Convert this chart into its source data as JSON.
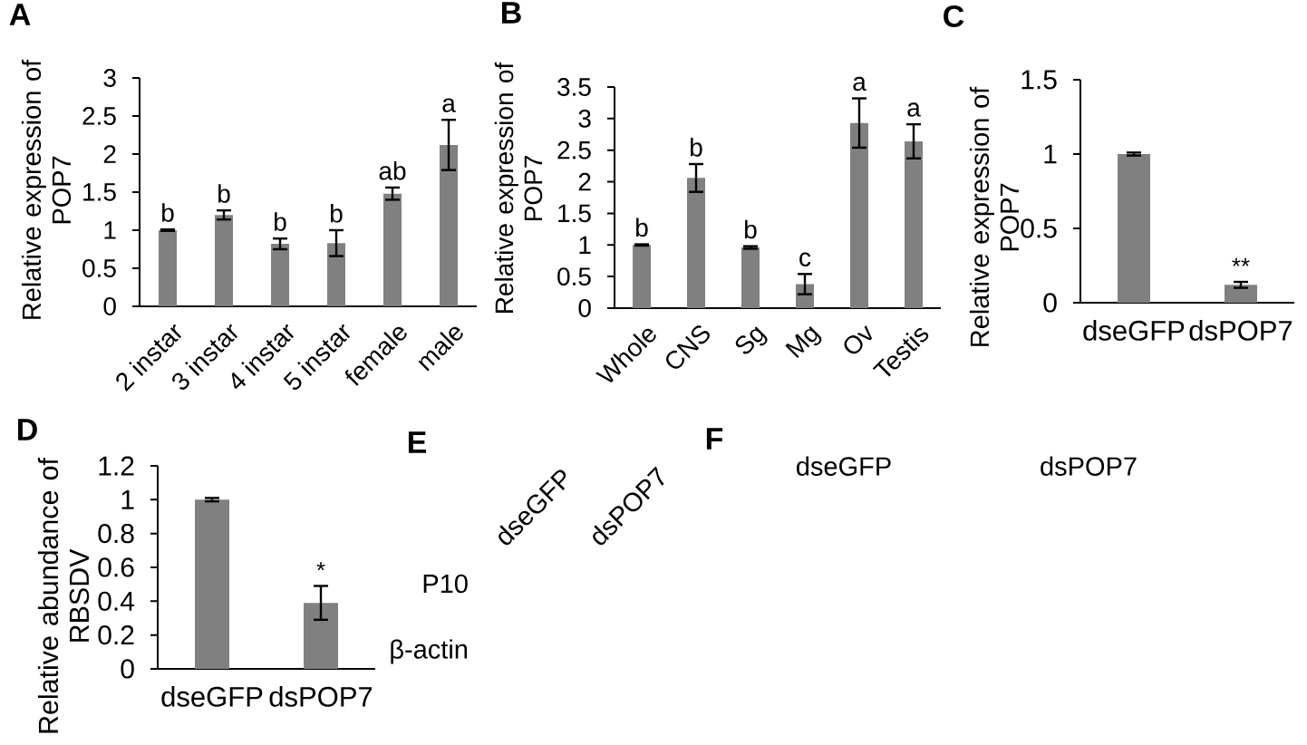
{
  "chart_data": [
    {
      "type": "bar",
      "title": "A",
      "ylabel": "Relative expression of\nPOP7",
      "categories": [
        "2 instar",
        "3 instar",
        "4 instar",
        "5 instar",
        "female",
        "male"
      ],
      "values": [
        1.0,
        1.2,
        0.82,
        0.83,
        1.48,
        2.12
      ],
      "errors": [
        0.01,
        0.06,
        0.07,
        0.17,
        0.08,
        0.33
      ],
      "color": "#808080",
      "ylim": [
        0,
        3
      ],
      "yticks": [
        0,
        0.5,
        1,
        1.5,
        2,
        2.5,
        3
      ],
      "annotations": [
        {
          "text": "b",
          "x": "2 instar",
          "y": 1.01
        },
        {
          "text": "b",
          "x": "3 instar",
          "y": 1.26
        },
        {
          "text": "b",
          "x": "4 instar",
          "y": 0.89
        },
        {
          "text": "b",
          "x": "5 instar",
          "y": 1.0
        },
        {
          "text": "ab",
          "x": "female",
          "y": 1.56
        },
        {
          "text": "a",
          "x": "male",
          "y": 2.45
        }
      ]
    },
    {
      "type": "bar",
      "title": "B",
      "ylabel": "Relative expression of\nPOP7",
      "categories": [
        "Whole",
        "CNS",
        "Sg",
        "Mg",
        "Ov",
        "Testis"
      ],
      "values": [
        1.0,
        2.06,
        0.96,
        0.38,
        2.93,
        2.64
      ],
      "errors": [
        0.01,
        0.22,
        0.02,
        0.16,
        0.39,
        0.27
      ],
      "color": "#808080",
      "ylim": [
        0,
        3.5
      ],
      "yticks": [
        0,
        0.5,
        1,
        1.5,
        2,
        2.5,
        3,
        3.5
      ],
      "annotations": [
        {
          "text": "b",
          "x": "Whole",
          "y": 1.01
        },
        {
          "text": "b",
          "x": "CNS",
          "y": 2.28
        },
        {
          "text": "b",
          "x": "Sg",
          "y": 0.98
        },
        {
          "text": "c",
          "x": "Mg",
          "y": 0.54
        },
        {
          "text": "a",
          "x": "Ov",
          "y": 3.32
        },
        {
          "text": "a",
          "x": "Testis",
          "y": 2.91
        }
      ]
    },
    {
      "type": "bar",
      "title": "C",
      "ylabel": "Relative expression of\nPOP7",
      "categories": [
        "dseGFP",
        "dsPOP7"
      ],
      "values": [
        1.0,
        0.12
      ],
      "errors": [
        0.01,
        0.02
      ],
      "color": "#808080",
      "ylim": [
        0,
        1.5
      ],
      "yticks": [
        0,
        0.5,
        1,
        1.5
      ],
      "annotations": [
        {
          "text": "**",
          "x": "dsPOP7",
          "y": 0.14
        }
      ]
    },
    {
      "type": "bar",
      "title": "D",
      "ylabel": "Relative abundance of\nRBSDV",
      "categories": [
        "dseGFP",
        "dsPOP7"
      ],
      "values": [
        1.0,
        0.39
      ],
      "errors": [
        0.01,
        0.1
      ],
      "color": "#808080",
      "ylim": [
        0,
        1.2
      ],
      "yticks": [
        0,
        0.2,
        0.4,
        0.6,
        0.8,
        1,
        1.2
      ],
      "annotations": [
        {
          "text": "*",
          "x": "dsPOP7",
          "y": 0.49
        }
      ]
    },
    {
      "type": "other",
      "title": "E",
      "categories": [
        "dseGFP",
        "dsPOP7"
      ],
      "y_categories": [
        "P10",
        "β-actin"
      ]
    },
    {
      "type": "other",
      "title": "F",
      "categories": [
        "dseGFP",
        "dsPOP7"
      ]
    }
  ]
}
